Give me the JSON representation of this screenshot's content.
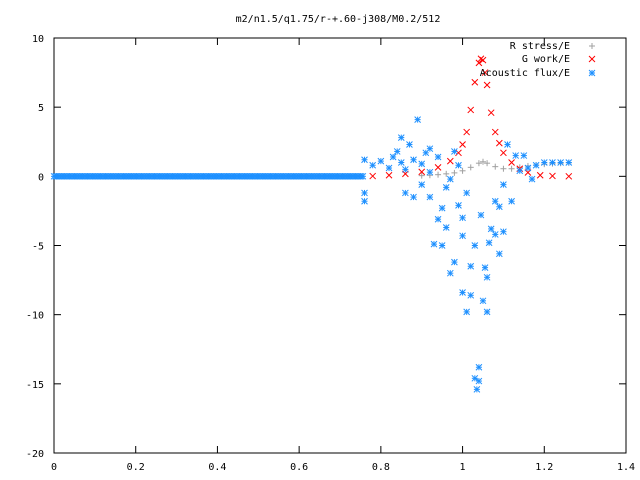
{
  "chart_data": {
    "type": "scatter",
    "title": "m2/n1.5/q1.75/r-+.60-j308/M0.2/512",
    "xlabel": "",
    "ylabel": "",
    "xlim": [
      0,
      1.4
    ],
    "ylim": [
      -20,
      10
    ],
    "x_ticks": [
      0,
      0.2,
      0.4,
      0.6,
      0.8,
      1,
      1.2,
      1.4
    ],
    "y_ticks": [
      -20,
      -15,
      -10,
      -5,
      0,
      5,
      10
    ],
    "x_tick_labels": [
      "0",
      "0.2",
      "0.4",
      "0.6",
      "0.8",
      "1",
      "1.2",
      "1.4"
    ],
    "y_tick_labels": [
      "-20",
      "-15",
      "-10",
      "-5",
      "0",
      "5",
      "10"
    ],
    "grid": false,
    "legend_position": "top-right",
    "series": [
      {
        "name": "R stress/E",
        "marker": "plus",
        "color": "#a0a0a0",
        "points": [
          [
            0.9,
            0.05
          ],
          [
            0.92,
            0.08
          ],
          [
            0.94,
            0.12
          ],
          [
            0.96,
            0.18
          ],
          [
            0.98,
            0.25
          ],
          [
            1.0,
            0.4
          ],
          [
            1.02,
            0.65
          ],
          [
            1.04,
            0.95
          ],
          [
            1.05,
            1.05
          ],
          [
            1.06,
            0.95
          ],
          [
            1.08,
            0.7
          ],
          [
            1.1,
            0.55
          ],
          [
            1.12,
            0.55
          ],
          [
            1.14,
            0.65
          ],
          [
            1.16,
            0.75
          ],
          [
            1.18,
            0.82
          ],
          [
            1.2,
            0.88
          ],
          [
            1.22,
            0.92
          ],
          [
            1.24,
            0.95
          ],
          [
            1.26,
            0.98
          ]
        ]
      },
      {
        "name": "G work/E",
        "marker": "cross",
        "color": "#ff0000",
        "points": [
          [
            0.78,
            0.02
          ],
          [
            0.82,
            0.08
          ],
          [
            0.86,
            0.18
          ],
          [
            0.9,
            0.32
          ],
          [
            0.94,
            0.65
          ],
          [
            0.97,
            1.1
          ],
          [
            0.99,
            1.7
          ],
          [
            1.0,
            2.3
          ],
          [
            1.01,
            3.2
          ],
          [
            1.02,
            4.8
          ],
          [
            1.03,
            6.8
          ],
          [
            1.04,
            8.2
          ],
          [
            1.045,
            8.5
          ],
          [
            1.05,
            8.4
          ],
          [
            1.055,
            7.5
          ],
          [
            1.06,
            6.6
          ],
          [
            1.07,
            4.6
          ],
          [
            1.08,
            3.2
          ],
          [
            1.09,
            2.4
          ],
          [
            1.1,
            1.7
          ],
          [
            1.12,
            1.0
          ],
          [
            1.14,
            0.55
          ],
          [
            1.16,
            0.28
          ],
          [
            1.19,
            0.08
          ],
          [
            1.22,
            0.03
          ],
          [
            1.26,
            0.0
          ]
        ]
      },
      {
        "name": "Acoustic flux/E",
        "marker": "star",
        "color": "#1e90ff",
        "points": [
          [
            0.76,
            -1.8
          ],
          [
            0.76,
            -1.2
          ],
          [
            0.76,
            1.2
          ],
          [
            0.78,
            0.8
          ],
          [
            0.8,
            1.1
          ],
          [
            0.82,
            0.6
          ],
          [
            0.83,
            1.4
          ],
          [
            0.84,
            1.8
          ],
          [
            0.85,
            1.0
          ],
          [
            0.85,
            2.8
          ],
          [
            0.86,
            0.5
          ],
          [
            0.86,
            -1.2
          ],
          [
            0.87,
            2.3
          ],
          [
            0.88,
            -1.5
          ],
          [
            0.88,
            1.2
          ],
          [
            0.89,
            4.1
          ],
          [
            0.9,
            -0.6
          ],
          [
            0.9,
            0.9
          ],
          [
            0.91,
            1.7
          ],
          [
            0.92,
            -1.5
          ],
          [
            0.92,
            0.3
          ],
          [
            0.92,
            2.0
          ],
          [
            0.93,
            -4.9
          ],
          [
            0.94,
            -3.1
          ],
          [
            0.94,
            1.4
          ],
          [
            0.95,
            -5.0
          ],
          [
            0.95,
            -2.3
          ],
          [
            0.96,
            -0.8
          ],
          [
            0.96,
            -3.7
          ],
          [
            0.97,
            -0.2
          ],
          [
            0.97,
            -7.0
          ],
          [
            0.98,
            -6.2
          ],
          [
            0.98,
            1.8
          ],
          [
            0.99,
            -2.1
          ],
          [
            0.99,
            0.8
          ],
          [
            1.0,
            -3.0
          ],
          [
            1.0,
            -4.3
          ],
          [
            1.0,
            -8.4
          ],
          [
            1.01,
            -9.8
          ],
          [
            1.01,
            -1.2
          ],
          [
            1.02,
            -6.5
          ],
          [
            1.02,
            -8.6
          ],
          [
            1.03,
            -14.6
          ],
          [
            1.03,
            -5.0
          ],
          [
            1.035,
            -15.4
          ],
          [
            1.04,
            -13.8
          ],
          [
            1.04,
            -14.8
          ],
          [
            1.045,
            -2.8
          ],
          [
            1.05,
            -9.0
          ],
          [
            1.055,
            -6.6
          ],
          [
            1.06,
            -7.3
          ],
          [
            1.06,
            -9.8
          ],
          [
            1.065,
            -4.8
          ],
          [
            1.07,
            -3.8
          ],
          [
            1.08,
            -4.2
          ],
          [
            1.08,
            -1.8
          ],
          [
            1.09,
            -2.2
          ],
          [
            1.09,
            -5.6
          ],
          [
            1.1,
            -4.0
          ],
          [
            1.1,
            -0.6
          ],
          [
            1.11,
            2.3
          ],
          [
            1.12,
            -1.8
          ],
          [
            1.13,
            1.5
          ],
          [
            1.14,
            0.4
          ],
          [
            1.15,
            1.5
          ],
          [
            1.16,
            0.6
          ],
          [
            1.17,
            -0.2
          ],
          [
            1.18,
            0.8
          ],
          [
            1.2,
            1.0
          ],
          [
            1.22,
            1.0
          ],
          [
            1.24,
            1.0
          ],
          [
            1.26,
            1.0
          ]
        ]
      }
    ]
  }
}
